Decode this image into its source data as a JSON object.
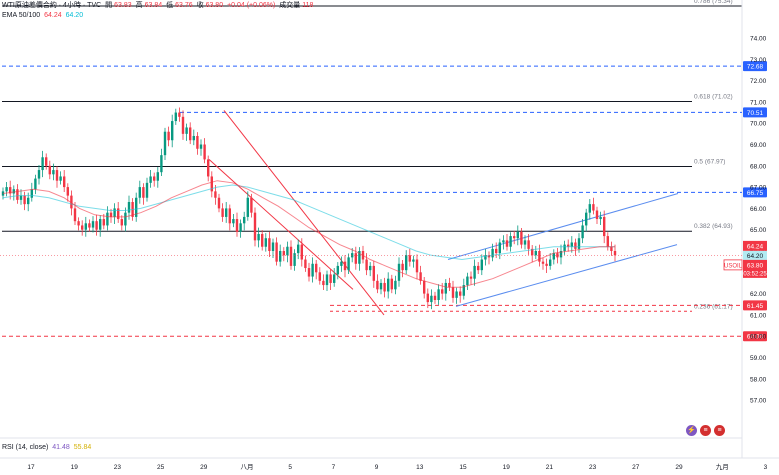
{
  "header": {
    "symbol": "WTI原油差價合約 · 4小時 · TVC",
    "open_label": "開",
    "open": "63.83",
    "high_label": "高",
    "high": "63.84",
    "low_label": "低",
    "low": "63.76",
    "close_label": "收",
    "close": "63.80",
    "change": "+0.04 (+0.06%)",
    "volume_label": "成交量",
    "volume": "118"
  },
  "ema": {
    "label": "EMA 50/100",
    "ema50": "64.24",
    "ema100": "64.20"
  },
  "rsi": {
    "label": "RSI (14, close)",
    "value1": "41.48",
    "value2": "55.84"
  },
  "colors": {
    "up": "#089981",
    "down": "#f23645",
    "ema50": "#f23645",
    "ema100": "#26c6da",
    "channel": "#5b8def",
    "level": "#2962ff"
  },
  "chart_data": {
    "type": "candlestick",
    "y_axis": {
      "ylim": [
        56.5,
        75.6
      ],
      "ticks": [
        "74.00",
        "73.00",
        "72.00",
        "71.00",
        "70.00",
        "69.00",
        "68.00",
        "67.00",
        "66.00",
        "65.00",
        "64.00",
        "63.00",
        "62.00",
        "61.00",
        "60.00",
        "59.00",
        "58.00",
        "57.00"
      ],
      "top_partial_label": "0.786 (75.34)"
    },
    "x_axis": {
      "labels": [
        {
          "t": "17",
          "i": 0
        },
        {
          "t": "19",
          "i": 12
        },
        {
          "t": "23",
          "i": 24
        },
        {
          "t": "25",
          "i": 36
        },
        {
          "t": "29",
          "i": 48
        },
        {
          "t": "八月",
          "i": 60
        },
        {
          "t": "5",
          "i": 72
        },
        {
          "t": "7",
          "i": 84
        },
        {
          "t": "9",
          "i": 96
        },
        {
          "t": "13",
          "i": 108
        },
        {
          "t": "15",
          "i": 120
        },
        {
          "t": "19",
          "i": 132
        },
        {
          "t": "21",
          "i": 144
        },
        {
          "t": "23",
          "i": 156
        },
        {
          "t": "27",
          "i": 168
        },
        {
          "t": "29",
          "i": 180
        },
        {
          "t": "九月",
          "i": 192
        },
        {
          "t": "3",
          "i": 204
        },
        {
          "t": "5",
          "i": 216
        },
        {
          "t": "9",
          "i": 228
        }
      ]
    },
    "price_path": [
      66.8,
      67.0,
      66.7,
      66.9,
      66.4,
      66.6,
      66.2,
      66.5,
      66.9,
      67.4,
      67.8,
      68.4,
      68.0,
      67.6,
      67.8,
      67.3,
      67.5,
      67.0,
      66.6,
      66.0,
      65.4,
      65.2,
      65.0,
      65.3,
      65.1,
      65.4,
      65.0,
      65.5,
      65.2,
      65.8,
      65.6,
      66.0,
      65.5,
      65.2,
      65.8,
      66.3,
      65.6,
      66.5,
      67.0,
      66.5,
      67.2,
      67.5,
      67.3,
      67.7,
      68.5,
      69.6,
      69.2,
      70.1,
      70.5,
      70.3,
      69.5,
      69.8,
      69.2,
      69.4,
      68.8,
      69.0,
      68.3,
      67.5,
      66.8,
      66.5,
      66.0,
      65.6,
      66.0,
      65.3,
      65.5,
      64.9,
      65.3,
      65.6,
      66.5,
      65.8,
      64.5,
      64.8,
      64.2,
      64.6,
      64.0,
      64.4,
      63.5,
      64.0,
      63.8,
      64.2,
      63.3,
      63.9,
      64.3,
      63.6,
      63.2,
      62.8,
      63.4,
      63.0,
      62.6,
      62.4,
      62.9,
      62.5,
      62.9,
      63.3,
      63.5,
      63.1,
      63.7,
      63.9,
      63.4,
      64.0,
      63.6,
      63.1,
      63.3,
      62.6,
      62.2,
      62.5,
      62.1,
      62.7,
      62.2,
      62.6,
      63.4,
      63.1,
      63.8,
      63.5,
      63.6,
      63.0,
      62.6,
      62.0,
      61.6,
      61.9,
      61.7,
      62.2,
      62.0,
      62.5,
      62.3,
      61.8,
      62.1,
      61.9,
      62.4,
      62.8,
      62.7,
      63.3,
      63.1,
      63.6,
      63.8,
      63.7,
      64.1,
      63.9,
      64.4,
      64.5,
      64.2,
      64.7,
      64.6,
      64.9,
      64.3,
      64.5,
      64.1,
      63.8,
      64.0,
      63.5,
      63.4,
      63.3,
      63.6,
      63.9,
      63.7,
      64.0,
      64.3,
      64.2,
      64.4,
      64.1,
      64.6,
      65.2,
      65.8,
      66.2,
      65.9,
      65.5,
      65.6,
      64.7,
      64.2,
      64.0,
      63.8
    ],
    "ema50_path": [
      66.7,
      66.8,
      66.9,
      66.8,
      66.5,
      66.0,
      65.7,
      65.6,
      65.6,
      65.8,
      66.1,
      66.5,
      66.8,
      67.1,
      67.3,
      67.2,
      66.9,
      66.5,
      66.1,
      65.6,
      65.1,
      64.7,
      64.3,
      64.0,
      63.6,
      63.3,
      63.0,
      62.7,
      62.5,
      62.3,
      62.3,
      62.5,
      62.7,
      63.0,
      63.3,
      63.6,
      63.9,
      64.0,
      64.1,
      64.2,
      64.2
    ],
    "ema100_path": [
      66.5,
      66.6,
      66.6,
      66.5,
      66.3,
      66.1,
      66.0,
      65.9,
      65.9,
      66.0,
      66.2,
      66.4,
      66.6,
      66.8,
      67.0,
      67.1,
      67.0,
      66.8,
      66.6,
      66.4,
      66.1,
      65.8,
      65.5,
      65.2,
      64.9,
      64.6,
      64.3,
      64.0,
      63.8,
      63.7,
      63.6,
      63.7,
      63.8,
      63.9,
      64.0,
      64.1,
      64.2,
      64.2,
      64.2,
      64.2,
      64.2
    ],
    "fib_levels": [
      {
        "price": 71.02,
        "label": "0.618 (71.02)",
        "x0": 2,
        "x1": 692
      },
      {
        "price": 67.97,
        "label": "0.5 (67.97)",
        "x0": 2,
        "x1": 692
      },
      {
        "price": 64.93,
        "label": "0.382 (64.93)",
        "x0": 2,
        "x1": 692
      },
      {
        "price": 61.17,
        "label": "0.236 (61.17)",
        "x0": 2,
        "x1": 692
      }
    ],
    "horizontal_levels": [
      {
        "price": 72.68,
        "label": "72.68",
        "style": "blue-dashed",
        "x0": 2
      },
      {
        "price": 70.51,
        "label": "70.51",
        "style": "blue-dashed",
        "x0": 180
      },
      {
        "price": 66.75,
        "label": "66.75",
        "style": "blue-dashed",
        "x0": 292
      },
      {
        "price": 61.45,
        "label": "61.45",
        "style": "red-dashed",
        "x0": 330
      },
      {
        "price": 60.0,
        "label": "60.00",
        "style": "red-dashed",
        "x0": 2
      }
    ],
    "trend_lines": [
      {
        "color": "red",
        "from": [
          224,
          70.6
        ],
        "to": [
          384,
          61.0
        ]
      },
      {
        "color": "red",
        "from": [
          209,
          68.3
        ],
        "to": [
          353,
          62.2
        ]
      },
      {
        "color": "blue",
        "from": [
          448,
          63.6
        ],
        "to": [
          678,
          66.7
        ]
      },
      {
        "color": "blue",
        "from": [
          456,
          61.4
        ],
        "to": [
          677,
          64.3
        ]
      }
    ],
    "right_labels": {
      "ema50": "64.24",
      "ema100": "64.20",
      "symbol": "USOIL",
      "price": "63.80",
      "countdown": "03:52:25"
    }
  }
}
